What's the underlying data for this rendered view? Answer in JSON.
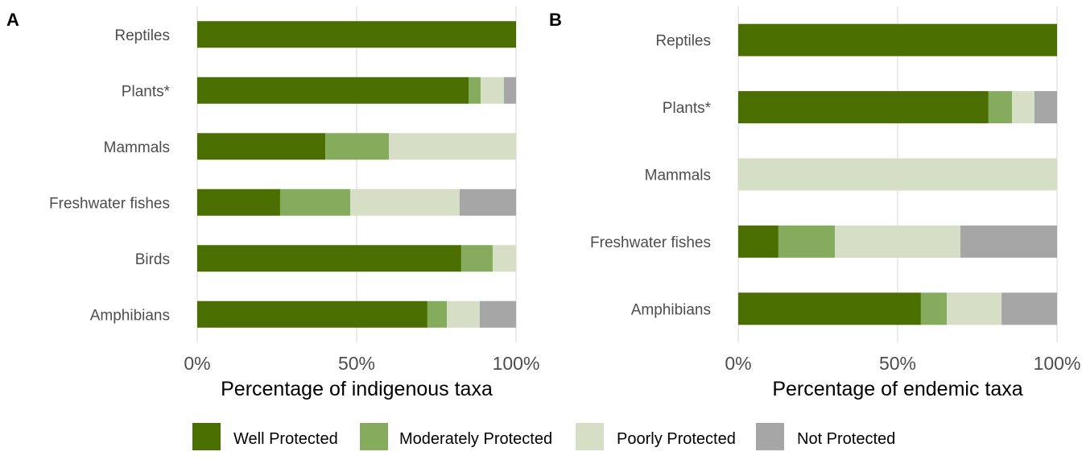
{
  "legend": {
    "position": "bottom",
    "items": [
      {
        "name": "Well Protected",
        "color": "#4a6e00"
      },
      {
        "name": "Moderately Protected",
        "color": "#85ab5c"
      },
      {
        "name": "Poorly Protected",
        "color": "#d6dfc6"
      },
      {
        "name": "Not Protected",
        "color": "#a6a6a6"
      }
    ]
  },
  "chart_data": [
    {
      "panel": "A",
      "type": "bar",
      "orientation": "horizontal",
      "stacked": true,
      "title": "",
      "xlabel": "Percentage of indigenous taxa",
      "ylabel": "",
      "xlim": [
        0,
        100
      ],
      "xticks": [
        "0%",
        "50%",
        "100%"
      ],
      "grid": true,
      "categories": [
        "Reptiles",
        "Plants*",
        "Mammals",
        "Freshwater fishes",
        "Birds",
        "Amphibians"
      ],
      "series": [
        {
          "name": "Well Protected",
          "values": [
            100,
            85.1,
            40.2,
            26.0,
            82.8,
            72.2
          ]
        },
        {
          "name": "Moderately Protected",
          "values": [
            0,
            3.8,
            19.9,
            22.0,
            9.9,
            6.1
          ]
        },
        {
          "name": "Poorly Protected",
          "values": [
            0,
            7.3,
            39.9,
            34.3,
            7.3,
            10.3
          ]
        },
        {
          "name": "Not Protected",
          "values": [
            0,
            3.8,
            0,
            17.7,
            0,
            11.4
          ]
        }
      ]
    },
    {
      "panel": "B",
      "type": "bar",
      "orientation": "horizontal",
      "stacked": true,
      "title": "",
      "xlabel": "Percentage of endemic taxa",
      "ylabel": "",
      "xlim": [
        0,
        100
      ],
      "xticks": [
        "0%",
        "50%",
        "100%"
      ],
      "grid": true,
      "categories": [
        "Reptiles",
        "Plants*",
        "Mammals",
        "Freshwater fishes",
        "Amphibians"
      ],
      "series": [
        {
          "name": "Well Protected",
          "values": [
            100,
            78.5,
            0,
            12.6,
            57.3
          ]
        },
        {
          "name": "Moderately Protected",
          "values": [
            0,
            7.4,
            0,
            17.7,
            8.1
          ]
        },
        {
          "name": "Poorly Protected",
          "values": [
            0,
            7.0,
            100,
            39.4,
            17.2
          ]
        },
        {
          "name": "Not Protected",
          "values": [
            0,
            7.1,
            0,
            30.3,
            17.4
          ]
        }
      ]
    }
  ]
}
